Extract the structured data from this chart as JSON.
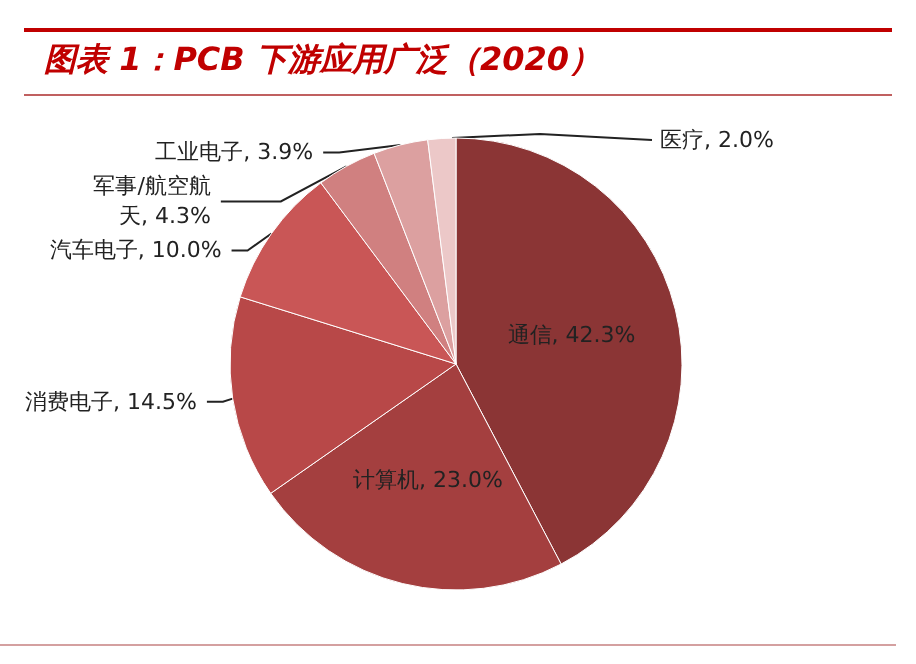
{
  "chart_data": {
    "type": "pie",
    "title": "图表 1：PCB 下游应用广泛（2020）",
    "categories": [
      "通信",
      "计算机",
      "消费电子",
      "汽车电子",
      "军事/航空航天",
      "工业电子",
      "医疗"
    ],
    "values": [
      42.3,
      23.0,
      14.5,
      10.0,
      4.3,
      3.9,
      2.0
    ],
    "value_labels": [
      "42.3%",
      "23.0%",
      "14.5%",
      "10.0%",
      "4.3%",
      "3.9%",
      "2.0%"
    ],
    "colors": [
      "#8b3535",
      "#a43f3f",
      "#b84848",
      "#c95656",
      "#d08080",
      "#dca0a0",
      "#ecc8c8"
    ],
    "legend": false
  }
}
